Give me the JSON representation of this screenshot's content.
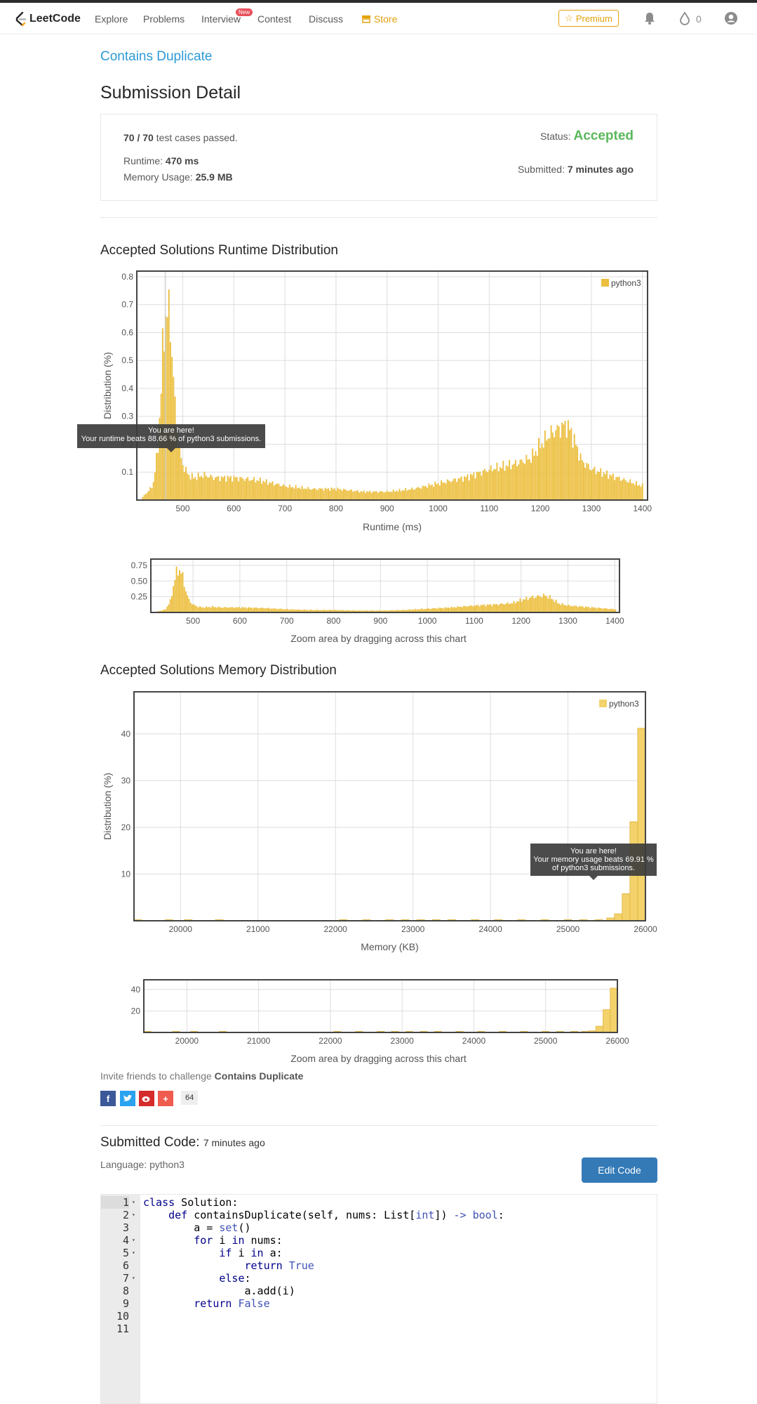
{
  "nav": {
    "logo": "LeetCode",
    "items": [
      "Explore",
      "Problems",
      "Interview",
      "Contest",
      "Discuss",
      "Store"
    ],
    "new_badge": "New",
    "premium": "Premium",
    "coins": "0"
  },
  "problem_title": "Contains Duplicate",
  "detail": {
    "heading": "Submission Detail",
    "passed_count": "70 / 70",
    "passed_text": "test cases passed.",
    "runtime_label": "Runtime:",
    "runtime_value": "470 ms",
    "memory_label": "Memory Usage:",
    "memory_value": "25.9 MB",
    "status_label": "Status:",
    "status_value": "Accepted",
    "submitted_label": "Submitted:",
    "submitted_value": "7 minutes ago"
  },
  "runtime_section": {
    "heading": "Accepted Solutions Runtime Distribution",
    "tooltip_line1": "You are here!",
    "tooltip_line2": "Your runtime beats 88.66 % of python3 submissions.",
    "zoom_hint": "Zoom area by dragging across this chart"
  },
  "memory_section": {
    "heading": "Accepted Solutions Memory Distribution",
    "tooltip_line1": "You are here!",
    "tooltip_line2": "Your memory usage beats 69.91 % of python3 submissions.",
    "zoom_hint": "Zoom area by dragging across this chart"
  },
  "chart_data": [
    {
      "type": "bar",
      "title": "",
      "xlabel": "Runtime (ms)",
      "ylabel": "Distribution (%)",
      "xlim": [
        410,
        1410
      ],
      "ylim": [
        0,
        0.82
      ],
      "x_ticks": [
        500,
        600,
        700,
        800,
        900,
        1000,
        1100,
        1200,
        1300,
        1400
      ],
      "y_ticks": [
        0.1,
        0.2,
        0.3,
        0.4,
        0.5,
        0.6,
        0.7,
        0.8
      ],
      "series": [
        {
          "name": "python3",
          "color": "#ecbf3f",
          "x": [
            420,
            440,
            450,
            455,
            460,
            465,
            470,
            475,
            480,
            485,
            490,
            495,
            500,
            510,
            520,
            540,
            560,
            600,
            650,
            700,
            750,
            800,
            850,
            900,
            950,
            1000,
            1050,
            1100,
            1150,
            1180,
            1200,
            1220,
            1240,
            1250,
            1260,
            1280,
            1300,
            1350,
            1400
          ],
          "values": [
            0.01,
            0.05,
            0.18,
            0.35,
            0.55,
            0.66,
            0.68,
            0.62,
            0.45,
            0.3,
            0.2,
            0.15,
            0.12,
            0.09,
            0.08,
            0.09,
            0.08,
            0.08,
            0.07,
            0.05,
            0.04,
            0.04,
            0.03,
            0.03,
            0.04,
            0.06,
            0.08,
            0.11,
            0.13,
            0.15,
            0.2,
            0.24,
            0.26,
            0.27,
            0.24,
            0.14,
            0.11,
            0.08,
            0.05
          ]
        }
      ],
      "marker_x": 470,
      "legend": "top-right",
      "grid": true
    },
    {
      "type": "bar",
      "title": "",
      "xlabel": "",
      "ylabel": "",
      "xlim": [
        410,
        1410
      ],
      "ylim": [
        0,
        0.85
      ],
      "x_ticks": [
        500,
        600,
        700,
        800,
        900,
        1000,
        1100,
        1200,
        1300,
        1400
      ],
      "y_ticks": [
        0.25,
        0.5,
        0.75
      ],
      "y_tick_labels": [
        "0.25",
        "0.50",
        "0.75"
      ],
      "series": [
        {
          "color": "#ecbf3f",
          "x": [
            420,
            440,
            450,
            455,
            460,
            465,
            470,
            475,
            480,
            485,
            490,
            495,
            500,
            510,
            520,
            540,
            560,
            600,
            650,
            700,
            750,
            800,
            850,
            900,
            950,
            1000,
            1050,
            1100,
            1150,
            1180,
            1200,
            1220,
            1240,
            1250,
            1260,
            1280,
            1300,
            1350,
            1400
          ],
          "values": [
            0.01,
            0.05,
            0.18,
            0.35,
            0.55,
            0.66,
            0.68,
            0.62,
            0.45,
            0.3,
            0.2,
            0.15,
            0.12,
            0.09,
            0.08,
            0.09,
            0.08,
            0.08,
            0.07,
            0.05,
            0.04,
            0.04,
            0.03,
            0.03,
            0.04,
            0.06,
            0.08,
            0.11,
            0.13,
            0.15,
            0.2,
            0.24,
            0.26,
            0.27,
            0.24,
            0.14,
            0.11,
            0.08,
            0.05
          ]
        }
      ],
      "grid": true
    },
    {
      "type": "bar",
      "title": "",
      "xlabel": "Memory (KB)",
      "ylabel": "Distribution (%)",
      "xlim": [
        19400,
        26000
      ],
      "ylim": [
        0,
        49
      ],
      "x_ticks": [
        20000,
        21000,
        22000,
        23000,
        24000,
        25000,
        26000
      ],
      "y_ticks": [
        10,
        20,
        30,
        40
      ],
      "series": [
        {
          "name": "python3",
          "color": "#f3d16b",
          "x": [
            19450,
            19850,
            20100,
            20500,
            22100,
            22400,
            22700,
            22900,
            23100,
            23300,
            23500,
            23800,
            24100,
            24400,
            24700,
            25000,
            25200,
            25400,
            25550,
            25650,
            25750,
            25850,
            25950
          ],
          "values": [
            0.1,
            0.1,
            0.1,
            0.1,
            0.1,
            0.1,
            0.1,
            0.1,
            0.1,
            0.1,
            0.1,
            0.1,
            0.1,
            0.1,
            0.1,
            0.1,
            0.1,
            0.2,
            0.6,
            1.5,
            5.8,
            21.2,
            41.2
          ]
        }
      ],
      "marker_x": 25350,
      "legend": "top-right",
      "grid": true
    },
    {
      "type": "bar",
      "title": "",
      "xlabel": "",
      "ylabel": "",
      "xlim": [
        19400,
        26000
      ],
      "ylim": [
        0,
        49
      ],
      "x_ticks": [
        20000,
        21000,
        22000,
        23000,
        24000,
        25000,
        26000
      ],
      "y_ticks": [
        20,
        40
      ],
      "series": [
        {
          "color": "#f3d16b",
          "x": [
            19450,
            19850,
            20100,
            20500,
            22100,
            22400,
            22700,
            22900,
            23100,
            23300,
            23500,
            23800,
            24100,
            24400,
            24700,
            25000,
            25200,
            25400,
            25550,
            25650,
            25750,
            25850,
            25950
          ],
          "values": [
            0.1,
            0.1,
            0.1,
            0.1,
            0.1,
            0.1,
            0.1,
            0.1,
            0.1,
            0.1,
            0.1,
            0.1,
            0.1,
            0.1,
            0.1,
            0.1,
            0.1,
            0.2,
            0.6,
            1.5,
            5.8,
            21.2,
            41.2
          ]
        }
      ],
      "grid": true
    }
  ],
  "invite": {
    "text": "Invite friends to challenge",
    "problem": "Contains Duplicate",
    "share_count": "64"
  },
  "code_section": {
    "heading": "Submitted Code:",
    "time": "7 minutes ago",
    "language": "Language: python3",
    "edit_button": "Edit Code",
    "lines": [
      "class Solution:",
      "    def containsDuplicate(self, nums: List[int]) -> bool:",
      "        a = set()",
      "        for i in nums:",
      "            if i in a:",
      "                return True",
      "            else:",
      "                a.add(i)",
      "        return False",
      "",
      ""
    ]
  },
  "colors": {
    "accent": "#2d9ad6",
    "accepted": "#5cb85c",
    "bar": "#ecbf3f",
    "button": "#337ab7"
  }
}
